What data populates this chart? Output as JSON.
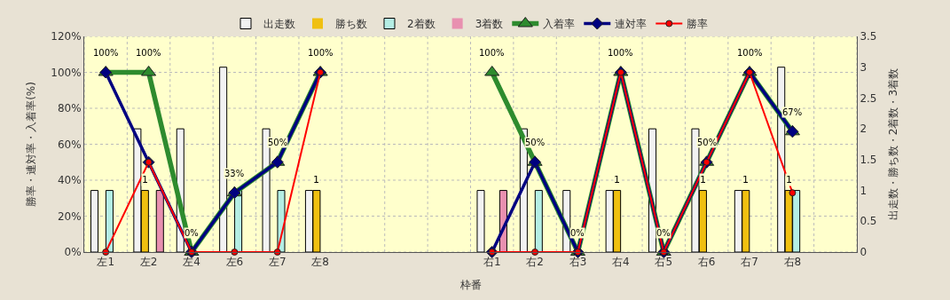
{
  "chart_data": {
    "type": "bar",
    "categories": [
      "左1",
      "左2",
      "左4",
      "左6",
      "左7",
      "左8",
      null,
      null,
      null,
      "右1",
      "右2",
      "右3",
      "右4",
      "右5",
      "右6",
      "右7",
      "右8",
      null
    ],
    "xlabel": "枠番",
    "ylabel": "勝率・連対率・入着率(%)",
    "y2label": "出走数・勝ち数・2着数・3着数",
    "series": [
      {
        "name": "出走数",
        "axis": "y2",
        "color": "#f2f2f2",
        "values": [
          1,
          2,
          2,
          3,
          2,
          1,
          null,
          null,
          null,
          1,
          2,
          1,
          1,
          2,
          2,
          1,
          3,
          null
        ]
      },
      {
        "name": "勝ち数",
        "axis": "y2",
        "color": "#f0c010",
        "values": [
          0,
          1,
          0,
          0,
          0,
          1,
          null,
          null,
          null,
          0,
          0,
          0,
          1,
          0,
          1,
          1,
          1,
          null
        ],
        "value_labels": [
          null,
          "1",
          null,
          null,
          null,
          "1",
          null,
          null,
          null,
          null,
          null,
          null,
          "1",
          null,
          "1",
          "1",
          "1",
          null
        ]
      },
      {
        "name": "2着数",
        "axis": "y2",
        "color": "#b4eee4",
        "values": [
          1,
          0,
          0,
          1,
          1,
          0,
          null,
          null,
          null,
          0,
          1,
          0,
          0,
          0,
          0,
          0,
          1,
          null
        ]
      },
      {
        "name": "3着数",
        "axis": "y2",
        "color": "#e890b0",
        "values": [
          0,
          1,
          0,
          0,
          0,
          0,
          null,
          null,
          null,
          1,
          0,
          0,
          0,
          0,
          0,
          0,
          0,
          null
        ]
      },
      {
        "name": "入着率",
        "type": "line",
        "color": "#2e8b2e",
        "marker": "triangle",
        "values": [
          100,
          100,
          0,
          33,
          50,
          100,
          null,
          null,
          null,
          100,
          50,
          0,
          100,
          0,
          50,
          100,
          67,
          null
        ],
        "value_labels": [
          "100%",
          "100%",
          "0%",
          "33%",
          "50%",
          "100%",
          null,
          null,
          null,
          "100%",
          "50%",
          "0%",
          "100%",
          "0%",
          "50%",
          "100%",
          "67%",
          null
        ]
      },
      {
        "name": "連対率",
        "type": "line",
        "color": "#000080",
        "marker": "diamond",
        "values": [
          100,
          50,
          0,
          33,
          50,
          100,
          null,
          null,
          null,
          0,
          50,
          0,
          100,
          0,
          50,
          100,
          67,
          null
        ]
      },
      {
        "name": "勝率",
        "type": "line",
        "color": "#ff0000",
        "marker": "circle",
        "values": [
          0,
          50,
          0,
          0,
          0,
          100,
          null,
          null,
          null,
          0,
          0,
          0,
          100,
          0,
          50,
          100,
          33,
          null
        ]
      }
    ],
    "ylim": [
      0,
      120
    ],
    "yticks": [
      {
        "value": 0,
        "label": "0%"
      },
      {
        "value": 20,
        "label": "20%"
      },
      {
        "value": 40,
        "label": "40%"
      },
      {
        "value": 60,
        "label": "60%"
      },
      {
        "value": 80,
        "label": "80%"
      },
      {
        "value": 100,
        "label": "100%"
      },
      {
        "value": 120,
        "label": "120%"
      }
    ],
    "y2lim": [
      0,
      3.5
    ],
    "y2ticks": [
      0,
      0.5,
      1,
      1.5,
      2,
      2.5,
      3,
      3.5
    ],
    "grid": true,
    "legend": "top"
  }
}
